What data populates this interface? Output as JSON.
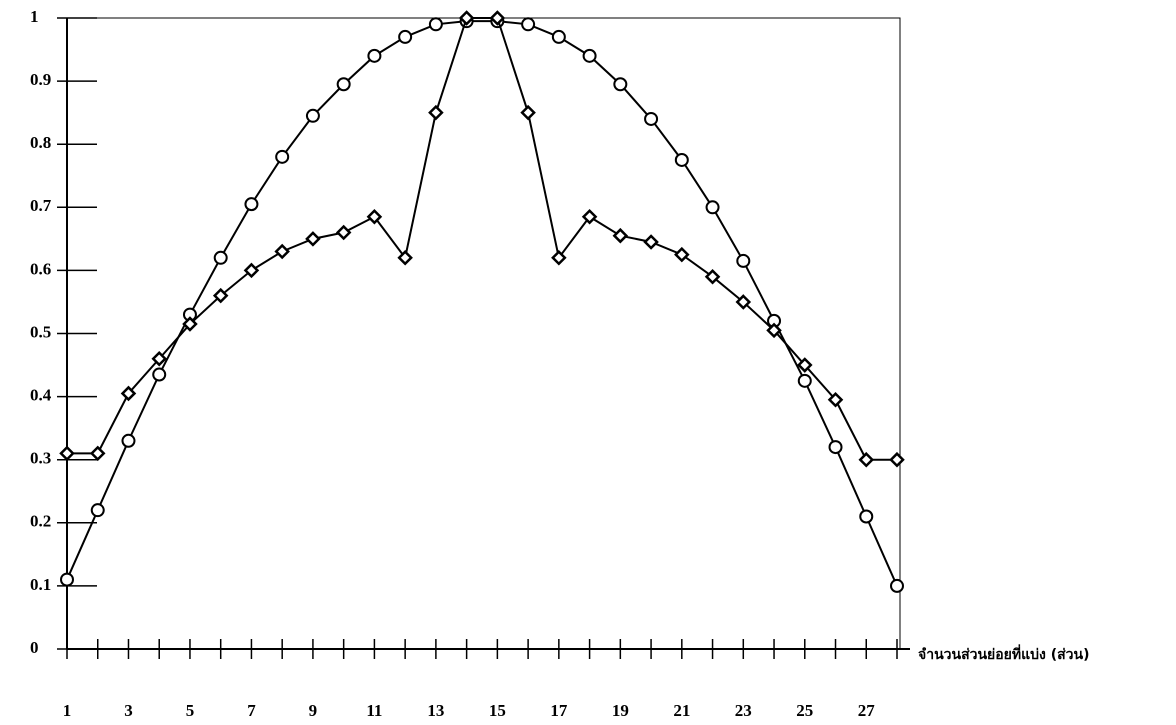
{
  "chart_data": {
    "type": "line",
    "x_label": "จำนวนส่วนย่อยที่แบ่ง (ส่วน)",
    "categories": [
      1,
      null,
      3,
      null,
      5,
      null,
      7,
      null,
      9,
      null,
      11,
      null,
      13,
      null,
      15,
      null,
      17,
      null,
      19,
      null,
      21,
      null,
      23,
      null,
      25,
      null,
      27,
      null
    ],
    "series": [
      {
        "color": "#000000",
        "marker": "circle",
        "values": [
          0.11,
          0.22,
          0.33,
          0.435,
          0.53,
          0.62,
          0.705,
          0.78,
          0.845,
          0.895,
          0.94,
          0.97,
          0.99,
          0.995,
          0.995,
          0.99,
          0.97,
          0.94,
          0.895,
          0.84,
          0.775,
          0.7,
          0.615,
          0.52,
          0.425,
          0.32,
          0.21,
          0.1
        ]
      },
      {
        "color": "#000000",
        "marker": "diamond",
        "values": [
          0.31,
          0.31,
          0.405,
          0.46,
          0.515,
          0.56,
          0.6,
          0.63,
          0.65,
          0.66,
          0.685,
          0.62,
          0.85,
          1.0,
          1.0,
          0.85,
          0.62,
          0.685,
          0.655,
          0.645,
          0.625,
          0.59,
          0.55,
          0.505,
          0.45,
          0.395,
          0.3,
          0.3
        ]
      }
    ],
    "ylim": [
      0,
      1
    ],
    "yticks": [
      0,
      0.1,
      0.2,
      0.3,
      0.4,
      0.5,
      0.6,
      0.7,
      0.8,
      0.9,
      1
    ],
    "grid": false
  }
}
